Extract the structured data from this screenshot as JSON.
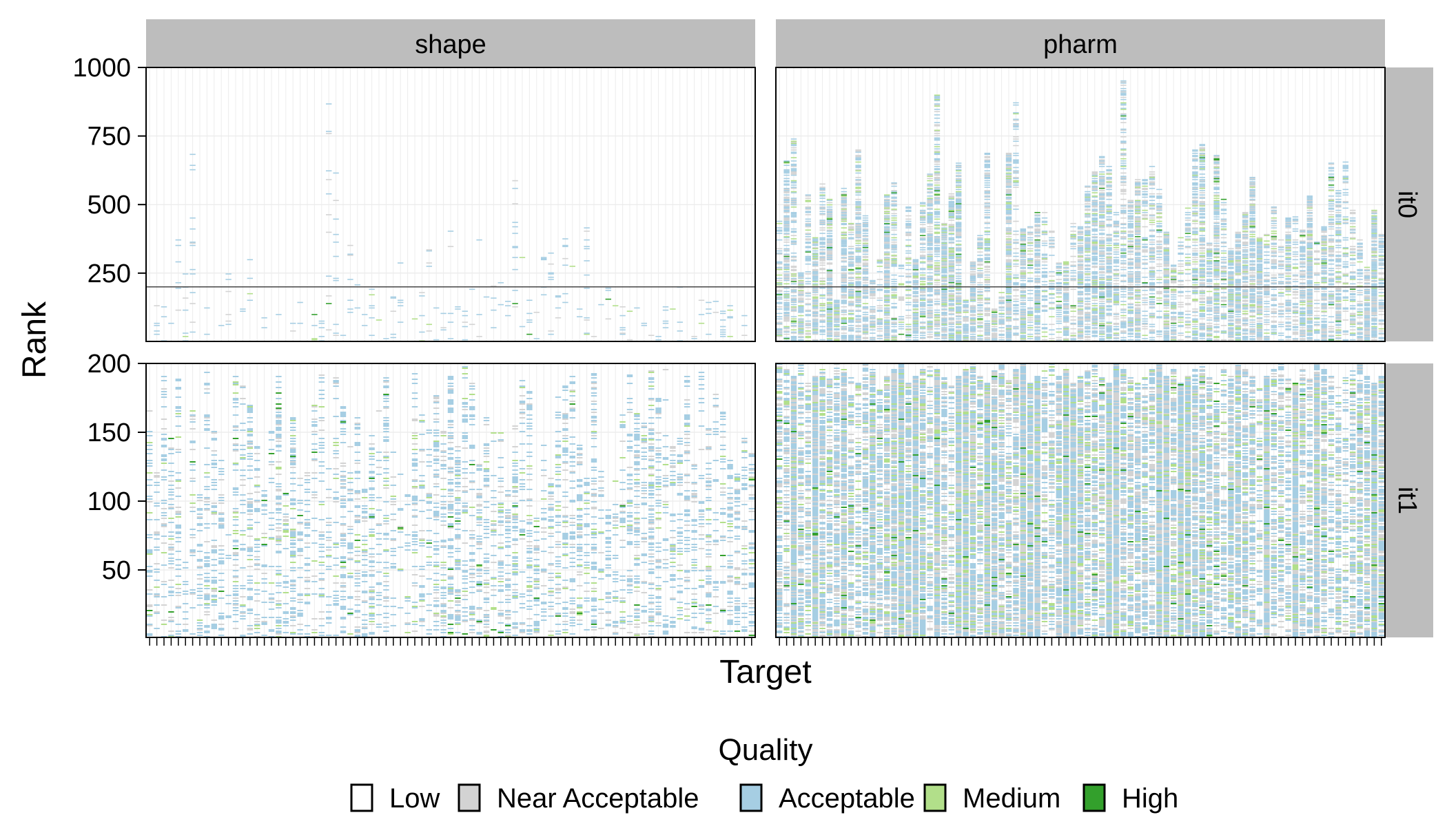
{
  "chart_data": {
    "type": "heatmap",
    "xlabel": "Target",
    "ylabel": "Rank",
    "facets": {
      "columns": [
        "shape",
        "pharm"
      ],
      "rows": [
        "it0",
        "it1"
      ]
    },
    "y_axes": {
      "it0": {
        "ylim": [
          1,
          1000
        ],
        "ticks": [
          250,
          500,
          750,
          1000
        ],
        "reference_line": 200
      },
      "it1": {
        "ylim": [
          1,
          200
        ],
        "ticks": [
          50,
          100,
          150,
          200
        ]
      }
    },
    "num_targets": 85,
    "grid": true,
    "legend": {
      "title": "Quality",
      "position": "bottom",
      "entries": [
        {
          "label": "Low",
          "color": "#ffffff"
        },
        {
          "label": "Near Acceptable",
          "color": "#d3d3d3"
        },
        {
          "label": "Acceptable",
          "color": "#a6cee3"
        },
        {
          "label": "Medium",
          "color": "#b2df8a"
        },
        {
          "label": "High",
          "color": "#33a02c"
        }
      ]
    },
    "approx_max_hit_rank_by_target": {
      "shape_it0": [
        60,
        130,
        180,
        95,
        440,
        260,
        700,
        70,
        210,
        90,
        120,
        260,
        240,
        180,
        300,
        90,
        150,
        110,
        150,
        130,
        80,
        180,
        90,
        210,
        130,
        910,
        620,
        180,
        400,
        240,
        150,
        190,
        110,
        210,
        170,
        290,
        200,
        100,
        240,
        360,
        130,
        160,
        420,
        210,
        130,
        240,
        370,
        180,
        230,
        370,
        260,
        640,
        330,
        150,
        130,
        310,
        330,
        200,
        450,
        330,
        160,
        430,
        140,
        140,
        220,
        180,
        180,
        130,
        140,
        140,
        110,
        110,
        160,
        130,
        210,
        270,
        170,
        190,
        150,
        250,
        110,
        140,
        130,
        120,
        90
      ],
      "pharm_it0": [
        440,
        660,
        740,
        250,
        540,
        380,
        580,
        520,
        150,
        560,
        430,
        700,
        460,
        240,
        300,
        540,
        580,
        330,
        500,
        300,
        510,
        610,
        900,
        430,
        540,
        650,
        150,
        290,
        400,
        690,
        120,
        180,
        690,
        870,
        410,
        420,
        470,
        480,
        430,
        290,
        290,
        440,
        420,
        570,
        620,
        680,
        640,
        470,
        950,
        520,
        590,
        590,
        640,
        560,
        400,
        280,
        380,
        510,
        700,
        720,
        360,
        680,
        520,
        340,
        400,
        470,
        600,
        380,
        390,
        500,
        370,
        450,
        460,
        410,
        530,
        380,
        420,
        650,
        560,
        680,
        480,
        400,
        270,
        480,
        390
      ],
      "shape_it1": [
        165,
        120,
        195,
        145,
        190,
        60,
        165,
        110,
        195,
        150,
        130,
        80,
        190,
        195,
        170,
        140,
        110,
        150,
        195,
        115,
        160,
        120,
        120,
        170,
        195,
        125,
        190,
        170,
        140,
        160,
        110,
        150,
        165,
        190,
        135,
        120,
        115,
        195,
        165,
        160,
        180,
        150,
        190,
        140,
        200,
        185,
        130,
        160,
        150,
        150,
        110,
        160,
        195,
        180,
        90,
        140,
        120,
        175,
        185,
        190,
        145,
        120,
        195,
        130,
        100,
        115,
        165,
        195,
        170,
        160,
        200,
        175,
        195,
        140,
        145,
        190,
        130,
        195,
        160,
        185,
        170,
        130,
        120,
        145,
        135
      ],
      "pharm_it1": [
        200,
        195,
        190,
        200,
        185,
        190,
        195,
        190,
        200,
        195,
        190,
        185,
        200,
        195,
        180,
        190,
        195,
        200,
        185,
        190,
        195,
        200,
        195,
        190,
        185,
        190,
        195,
        200,
        190,
        185,
        195,
        200,
        190,
        195,
        200,
        185,
        190,
        195,
        200,
        190,
        195,
        185,
        190,
        195,
        200,
        190,
        185,
        200,
        195,
        190,
        185,
        190,
        195,
        200,
        190,
        195,
        185,
        190,
        195,
        200,
        190,
        185,
        195,
        190,
        200,
        195,
        190,
        185,
        190,
        195,
        200,
        190,
        185,
        195,
        190,
        200,
        195,
        190,
        185,
        190,
        195,
        200,
        190,
        185,
        190
      ]
    }
  }
}
